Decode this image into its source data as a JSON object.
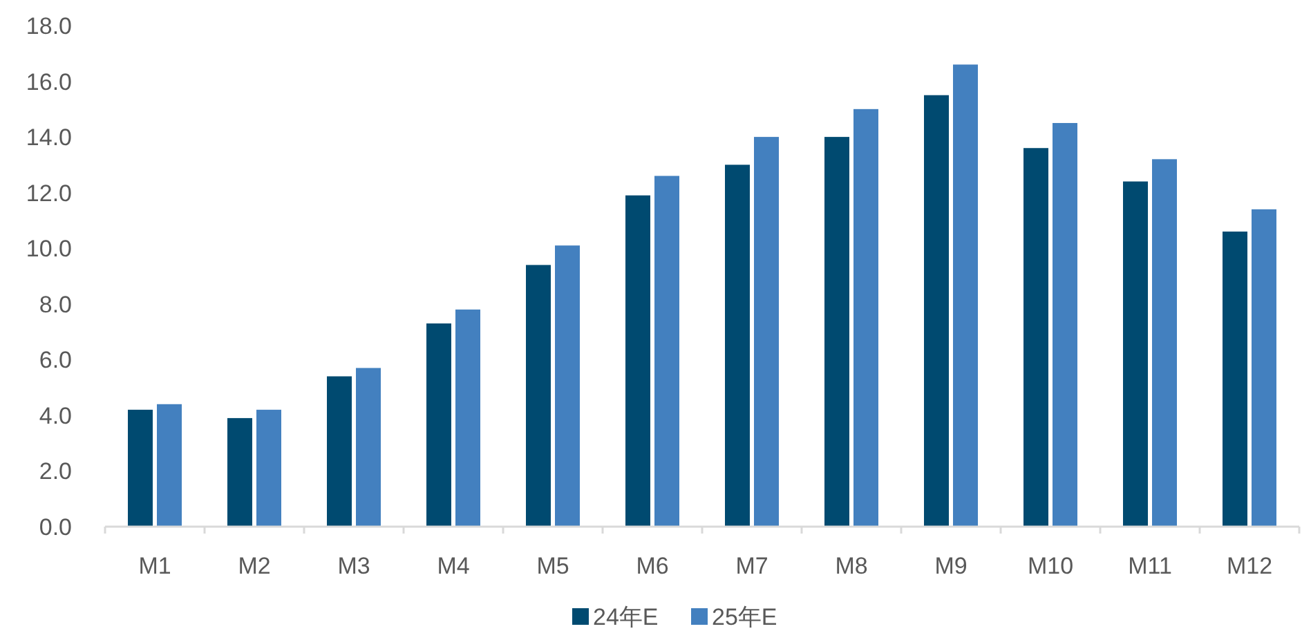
{
  "chart_data": {
    "type": "bar",
    "categories": [
      "M1",
      "M2",
      "M3",
      "M4",
      "M5",
      "M6",
      "M7",
      "M8",
      "M9",
      "M10",
      "M11",
      "M12"
    ],
    "series": [
      {
        "name": "24年E",
        "color": "#004a70",
        "values": [
          4.2,
          3.9,
          5.4,
          7.3,
          9.4,
          11.9,
          13.0,
          14.0,
          15.5,
          13.6,
          12.4,
          10.6
        ]
      },
      {
        "name": "25年E",
        "color": "#4380bf",
        "values": [
          4.4,
          4.2,
          5.7,
          7.8,
          10.1,
          12.6,
          14.0,
          15.0,
          16.6,
          14.5,
          13.2,
          11.4
        ]
      }
    ],
    "ylim": [
      0,
      18
    ],
    "yticks": [
      {
        "value": 0,
        "label": "0.0"
      },
      {
        "value": 2,
        "label": "2.0"
      },
      {
        "value": 4,
        "label": "4.0"
      },
      {
        "value": 6,
        "label": "6.0"
      },
      {
        "value": 8,
        "label": "8.0"
      },
      {
        "value": 10,
        "label": "10.0"
      },
      {
        "value": 12,
        "label": "12.0"
      },
      {
        "value": 14,
        "label": "14.0"
      },
      {
        "value": 16,
        "label": "16.0"
      },
      {
        "value": 18,
        "label": "18.0"
      }
    ],
    "grid": false,
    "legend": "bottom"
  }
}
